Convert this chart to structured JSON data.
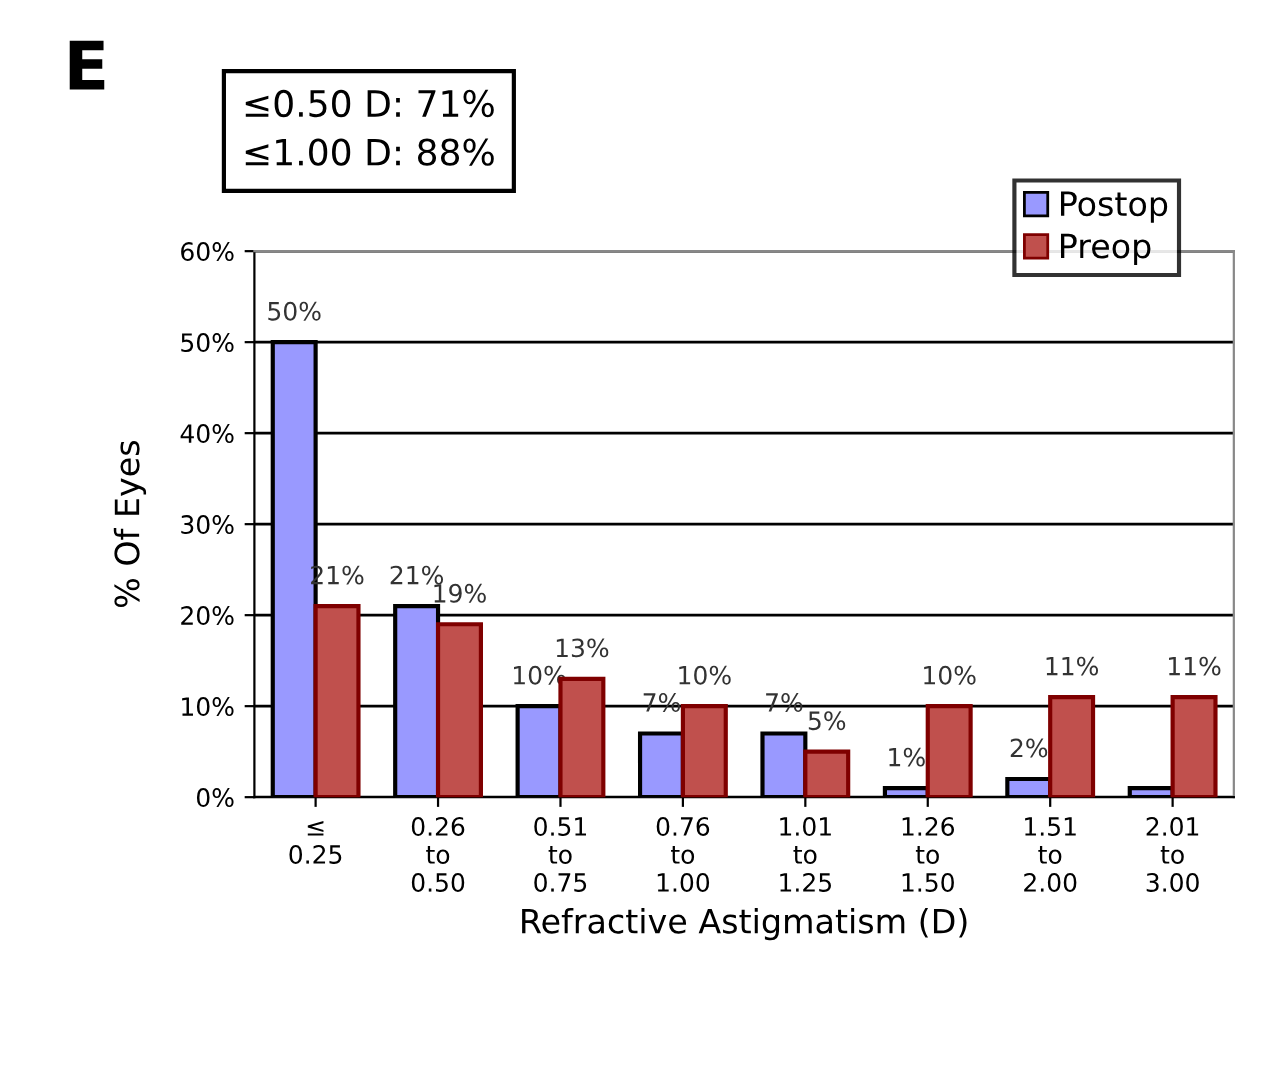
{
  "chart_data": {
    "type": "bar",
    "title": "E",
    "xlabel": "Refractive Astigmatism (D)",
    "ylabel": "% Of Eyes",
    "annotations": [
      "≤0.50 D: 71%\n≤1.00 D: 88%"
    ],
    "categories": [
      "≤\n0.25",
      "0.26\nto\n0.50",
      "0.51\nto\n0.75",
      "0.76\nto\n1.00",
      "1.01\nto\n1.25",
      "1.26\nto\n1.50",
      "1.51\nto\n2.00",
      "2.01\nto\n3.00"
    ],
    "series": [
      {
        "name": "Postop",
        "color": "#9999ff",
        "values": [
          50,
          21,
          10,
          7,
          7,
          1,
          2,
          1
        ],
        "value_labels": [
          "50%",
          "21%",
          "10%",
          "7%",
          "7%",
          "1%",
          "2%",
          null
        ]
      },
      {
        "name": "Preop",
        "color": "#c0504d",
        "values": [
          21,
          19,
          13,
          10,
          5,
          10,
          11,
          11
        ],
        "value_labels": [
          "21%",
          "19%",
          "13%",
          "10%",
          "5%",
          "10%",
          "11%",
          "11%"
        ]
      }
    ],
    "ylim": [
      0,
      60
    ],
    "yticks": [
      {
        "value": 0,
        "label": "0%"
      },
      {
        "value": 10,
        "label": "10%"
      },
      {
        "value": 20,
        "label": "20%"
      },
      {
        "value": 30,
        "label": "30%"
      },
      {
        "value": 40,
        "label": "40%"
      },
      {
        "value": 50,
        "label": "50%"
      },
      {
        "value": 60,
        "label": "60%"
      }
    ],
    "grid": "y",
    "legend": "top right"
  }
}
